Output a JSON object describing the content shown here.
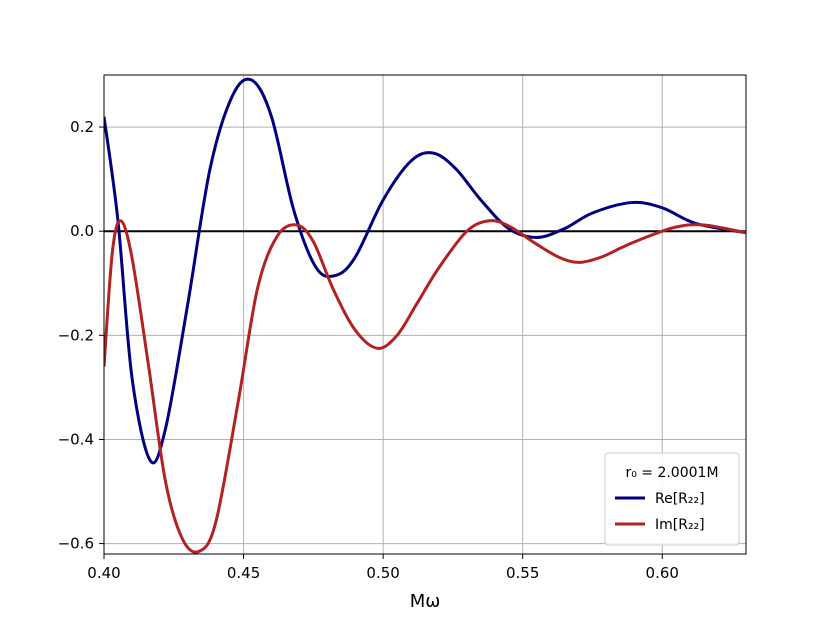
{
  "chart_data": {
    "type": "line",
    "xlabel": "Mω",
    "ylabel": "",
    "xlim": [
      0.4,
      0.63
    ],
    "ylim": [
      -0.62,
      0.3
    ],
    "xticks": [
      "0.40",
      "0.45",
      "0.50",
      "0.55",
      "0.60"
    ],
    "yticks": [
      "−0.6",
      "−0.4",
      "−0.2",
      "0.0",
      "0.2"
    ],
    "grid": true,
    "legend": {
      "title": "r₀ = 2.0001M",
      "placement": "lower-right",
      "entries": [
        "Re[R₂₂]",
        "Im[R₂₂]"
      ]
    },
    "reference_line": {
      "y": 0.0,
      "color": "#000000"
    },
    "series": [
      {
        "name": "Re[R₂₂]",
        "color": "#000080",
        "x": [
          0.4,
          0.405,
          0.41,
          0.4165,
          0.422,
          0.43,
          0.438,
          0.446,
          0.453,
          0.46,
          0.468,
          0.476,
          0.483,
          0.49,
          0.5,
          0.51,
          0.518,
          0.526,
          0.535,
          0.545,
          0.555,
          0.565,
          0.575,
          0.589,
          0.6,
          0.612,
          0.63
        ],
        "y": [
          0.22,
          0.02,
          -0.28,
          -0.44,
          -0.38,
          -0.14,
          0.12,
          0.26,
          0.29,
          0.22,
          0.04,
          -0.07,
          -0.085,
          -0.05,
          0.06,
          0.135,
          0.15,
          0.12,
          0.06,
          0.005,
          -0.012,
          0.005,
          0.035,
          0.055,
          0.045,
          0.015,
          -0.003
        ]
      },
      {
        "name": "Im[R₂₂]",
        "color": "#b22222",
        "x": [
          0.4,
          0.403,
          0.406,
          0.41,
          0.416,
          0.422,
          0.428,
          0.434,
          0.44,
          0.448,
          0.455,
          0.462,
          0.469,
          0.475,
          0.482,
          0.49,
          0.498,
          0.505,
          0.512,
          0.52,
          0.53,
          0.538,
          0.545,
          0.555,
          0.563,
          0.57,
          0.578,
          0.586,
          0.595,
          0.605,
          0.615,
          0.63
        ],
        "y": [
          -0.26,
          -0.04,
          0.02,
          -0.05,
          -0.26,
          -0.48,
          -0.59,
          -0.615,
          -0.56,
          -0.33,
          -0.11,
          -0.01,
          0.012,
          -0.02,
          -0.11,
          -0.19,
          -0.225,
          -0.2,
          -0.14,
          -0.07,
          0.0,
          0.02,
          0.01,
          -0.025,
          -0.05,
          -0.06,
          -0.05,
          -0.03,
          -0.01,
          0.008,
          0.012,
          -0.003
        ]
      }
    ]
  }
}
